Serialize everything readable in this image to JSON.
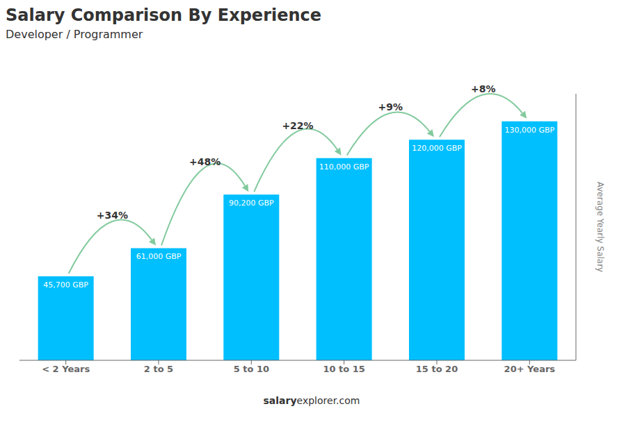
{
  "chart_data": {
    "type": "bar",
    "title": "Salary Comparison By Experience",
    "subtitle": "Developer / Programmer",
    "ylabel": "Average Yearly Salary",
    "categories": [
      "< 2 Years",
      "2 to 5",
      "5 to 10",
      "10 to 15",
      "15 to 20",
      "20+ Years"
    ],
    "values": [
      45700,
      61000,
      90200,
      110000,
      120000,
      130000
    ],
    "value_labels": [
      "45,700 GBP",
      "61,000 GBP",
      "90,200 GBP",
      "110,000 GBP",
      "120,000 GBP",
      "130,000 GBP"
    ],
    "data_labels": true,
    "annotations": [
      "+34%",
      "+48%",
      "+22%",
      "+9%",
      "+8%"
    ],
    "footer": [
      "salary",
      "explorer.com"
    ],
    "color": "#00bfff",
    "ylim": [
      0,
      145000
    ],
    "tick_labels": "x",
    "grid": false
  }
}
